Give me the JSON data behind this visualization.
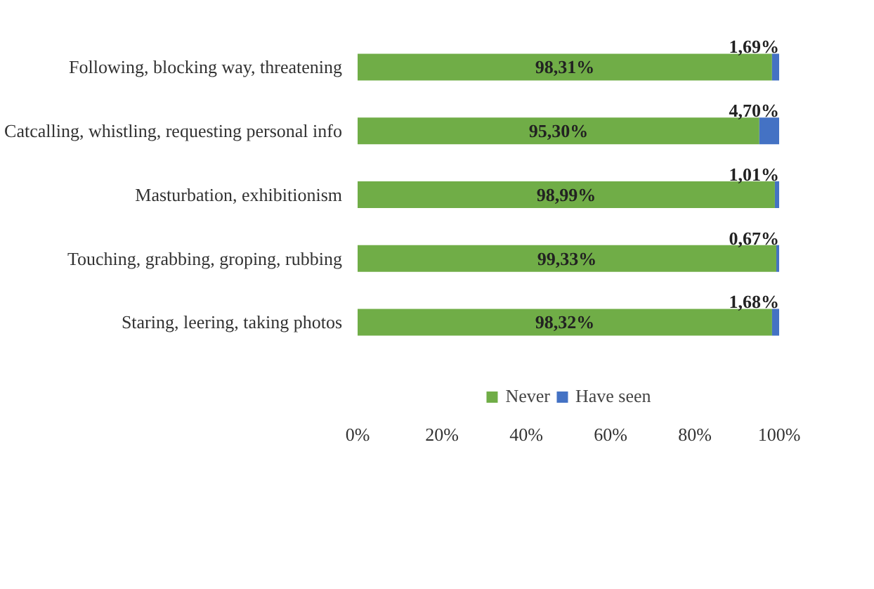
{
  "chart_data": {
    "type": "bar",
    "orientation": "horizontal",
    "stacked": true,
    "categories": [
      "Following, blocking way, threatening",
      "Catcalling, whistling, requesting personal info",
      "Masturbation, exhibitionism",
      "Touching, grabbing, groping, rubbing",
      "Staring, leering, taking photos"
    ],
    "series": [
      {
        "name": "Never",
        "color": "#70ad47",
        "values": [
          98.31,
          95.3,
          98.99,
          99.33,
          98.32
        ],
        "value_labels": [
          "98,31%",
          "95,30%",
          "98,99%",
          "99,33%",
          "98,32%"
        ]
      },
      {
        "name": "Have seen",
        "color": "#4472c4",
        "values": [
          1.69,
          4.7,
          1.01,
          0.67,
          1.68
        ],
        "value_labels": [
          "1,69%",
          "4,70%",
          "1,01%",
          "0,67%",
          "1,68%"
        ]
      }
    ],
    "xlim": [
      0,
      100
    ],
    "xticks": [
      {
        "value": 0,
        "label": "0%"
      },
      {
        "value": 20,
        "label": "20%"
      },
      {
        "value": 40,
        "label": "40%"
      },
      {
        "value": 60,
        "label": "60%"
      },
      {
        "value": 80,
        "label": "80%"
      },
      {
        "value": 100,
        "label": "100%"
      }
    ],
    "grid": false,
    "legend": "bottom"
  }
}
